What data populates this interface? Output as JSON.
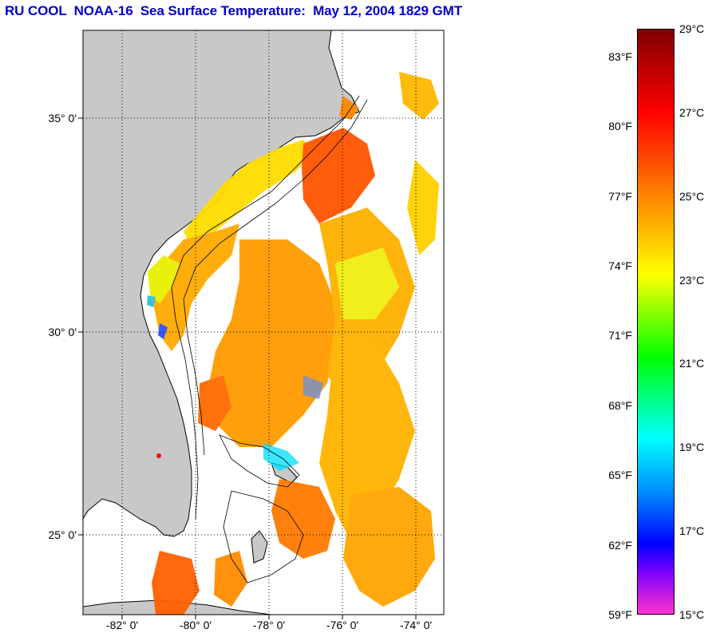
{
  "title": "RU COOL  NOAA-16  Sea Surface Temperature:  May 12, 2004 1829 GMT",
  "map": {
    "latitude_labels": [
      "35° 0'",
      "30° 0'",
      "25° 0'"
    ],
    "longitude_labels": [
      "-82° 0'",
      "-80° 0'",
      "-78° 0'",
      "-76° 0'",
      "-74° 0'"
    ],
    "colors": {
      "land": "#c8c8c8",
      "water_no_data": "#ffffff",
      "gridline": "#000000"
    }
  },
  "colorbar": {
    "fahrenheit_labels": [
      "83°F",
      "80°F",
      "77°F",
      "74°F",
      "71°F",
      "68°F",
      "65°F",
      "62°F",
      "59°F"
    ],
    "celsius_labels": [
      "29°C",
      "27°C",
      "25°C",
      "23°C",
      "21°C",
      "19°C",
      "17°C",
      "15°C"
    ],
    "fahrenheit_values": [
      83,
      80,
      77,
      74,
      71,
      68,
      65,
      62,
      59
    ],
    "celsius_values": [
      29,
      27,
      25,
      23,
      21,
      19,
      17,
      15
    ],
    "range_c": [
      15,
      29
    ],
    "colors_top_to_bottom": [
      "#800000",
      "#ff0000",
      "#ff7f00",
      "#ffff00",
      "#00ff00",
      "#00ffff",
      "#0080ff",
      "#0000ff",
      "#8000ff",
      "#ff33cc"
    ]
  }
}
